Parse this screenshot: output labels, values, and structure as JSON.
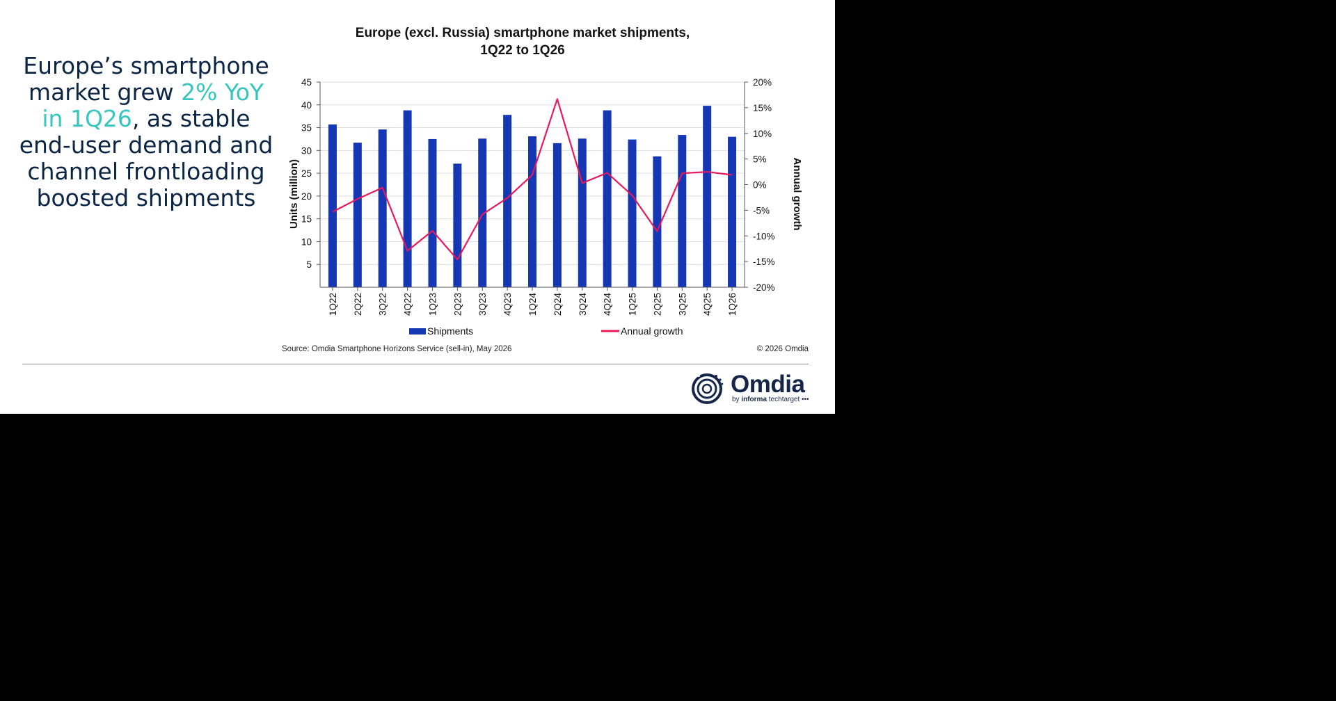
{
  "headline": {
    "part1": "Europe’s smartphone market grew ",
    "highlight": "2% YoY in 1Q26",
    "part2": ", as stable end-user demand and channel frontloading boosted shipments"
  },
  "footer": {
    "source": "Source: Omdia Smartphone Horizons Service (sell-in), May 2026",
    "copyright": "© 2026 Omdia"
  },
  "logo": {
    "word": "Omdia",
    "by": "by ",
    "brand": "informa",
    "rest": " techtarget"
  },
  "colors": {
    "bars": "#1537b4",
    "line": "#e8185a",
    "highlight": "#36c6c0",
    "headline": "#0b2545"
  },
  "chart_data": {
    "type": "bar",
    "title": "Europe (excl. Russia) smartphone market shipments,",
    "subtitle": "1Q22 to 1Q26",
    "xlabel": "",
    "ylabel": "Units (million)",
    "y2label": "Annual growth",
    "ylim": [
      0,
      45
    ],
    "yticks": [
      5,
      10,
      15,
      20,
      25,
      30,
      35,
      40,
      45
    ],
    "y2lim": [
      -20,
      20
    ],
    "y2ticks": [
      "-20%",
      "-15%",
      "-10%",
      "-5%",
      "0%",
      "5%",
      "10%",
      "15%",
      "20%"
    ],
    "grid": true,
    "legend_position": "bottom",
    "categories": [
      "1Q22",
      "2Q22",
      "3Q22",
      "4Q22",
      "1Q23",
      "2Q23",
      "3Q23",
      "4Q23",
      "1Q24",
      "2Q24",
      "3Q24",
      "4Q24",
      "1Q25",
      "2Q25",
      "3Q25",
      "4Q25",
      "1Q26"
    ],
    "series": [
      {
        "name": "Shipments",
        "type": "bar",
        "axis": "left",
        "values": [
          35.7,
          31.7,
          34.6,
          38.8,
          32.5,
          27.1,
          32.6,
          37.8,
          33.1,
          31.6,
          32.6,
          38.8,
          32.4,
          28.7,
          33.4,
          39.8,
          33.0
        ]
      },
      {
        "name": "Annual growth",
        "type": "line",
        "axis": "right",
        "values": [
          -5.3,
          -2.8,
          -0.6,
          -12.9,
          -9.0,
          -14.6,
          -5.8,
          -2.6,
          1.9,
          16.7,
          0.3,
          2.3,
          -2.1,
          -9.1,
          2.2,
          2.5,
          1.9
        ]
      }
    ]
  }
}
